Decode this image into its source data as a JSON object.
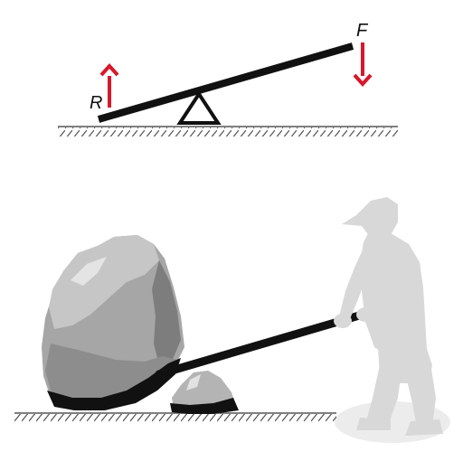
{
  "labels": {
    "resistance": "R",
    "force": "F"
  },
  "colors": {
    "arrow": "#d7182a",
    "beam": "#111111",
    "ground": "#555555",
    "person": "#d8d8d8",
    "shadow": "#ededed",
    "rock_light": "#c4c4c4",
    "rock_mid": "#9a9a9a",
    "rock_dark": "#6d6d6d",
    "rock_shadow": "#111111"
  },
  "icons": {
    "fulcrum": "triangle-fulcrum-icon",
    "force_arrow": "arrow-down-icon",
    "resistance_arrow": "arrow-up-icon",
    "person": "worker-silhouette-icon"
  }
}
